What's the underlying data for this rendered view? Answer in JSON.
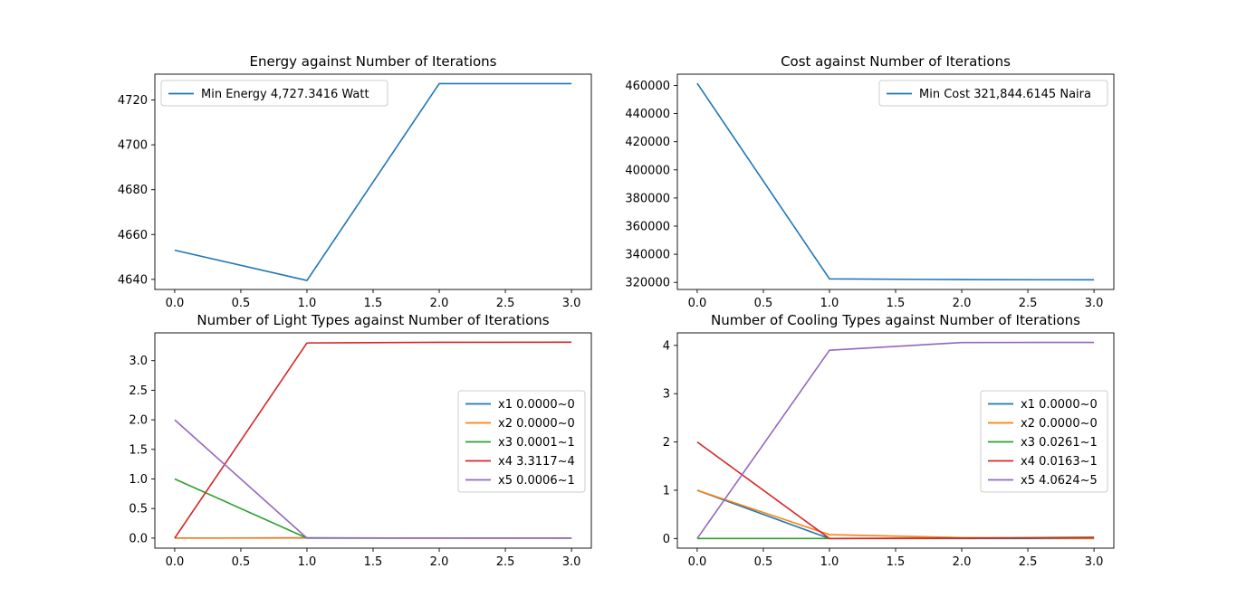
{
  "chart_data": [
    {
      "type": "line",
      "title": "Energy against Number of Iterations",
      "xlabel": "",
      "ylabel": "",
      "x": [
        0,
        1,
        2,
        3
      ],
      "xlim": [
        -0.15,
        3.15
      ],
      "ylim": [
        4635.5,
        4731.5
      ],
      "xticks": [
        0,
        0.5,
        1,
        1.5,
        2,
        2.5,
        3
      ],
      "xtick_labels": [
        "0.0",
        "0.5",
        "1.0",
        "1.5",
        "2.0",
        "2.5",
        "3.0"
      ],
      "yticks": [
        4640,
        4660,
        4680,
        4700,
        4720
      ],
      "ytick_labels": [
        "4640",
        "4660",
        "4680",
        "4700",
        "4720"
      ],
      "legend_position": "upper-left",
      "series": [
        {
          "name": "Min Energy 4,727.3416 Watt",
          "color": "#1f77b4",
          "values": [
            4653,
            4639.5,
            4727.3,
            4727.3
          ]
        }
      ]
    },
    {
      "type": "line",
      "title": "Cost against Number of Iterations",
      "xlabel": "",
      "ylabel": "",
      "x": [
        0,
        1,
        2,
        3
      ],
      "xlim": [
        -0.15,
        3.15
      ],
      "ylim": [
        315000,
        468000
      ],
      "xticks": [
        0,
        0.5,
        1,
        1.5,
        2,
        2.5,
        3
      ],
      "xtick_labels": [
        "0.0",
        "0.5",
        "1.0",
        "1.5",
        "2.0",
        "2.5",
        "3.0"
      ],
      "yticks": [
        320000,
        340000,
        360000,
        380000,
        400000,
        420000,
        440000,
        460000
      ],
      "ytick_labels": [
        "320000",
        "340000",
        "360000",
        "380000",
        "400000",
        "420000",
        "440000",
        "460000"
      ],
      "legend_position": "upper-right",
      "series": [
        {
          "name": "Min Cost 321,844.6145 Naira",
          "color": "#1f77b4",
          "values": [
            461500,
            322500,
            322000,
            321845
          ]
        }
      ]
    },
    {
      "type": "line",
      "title": "Number of Light Types against Number of Iterations",
      "xlabel": "",
      "ylabel": "",
      "x": [
        0,
        1,
        2,
        3
      ],
      "xlim": [
        -0.15,
        3.15
      ],
      "ylim": [
        -0.17,
        3.47
      ],
      "xticks": [
        0,
        0.5,
        1,
        1.5,
        2,
        2.5,
        3
      ],
      "xtick_labels": [
        "0.0",
        "0.5",
        "1.0",
        "1.5",
        "2.0",
        "2.5",
        "3.0"
      ],
      "yticks": [
        0,
        0.5,
        1,
        1.5,
        2,
        2.5,
        3
      ],
      "ytick_labels": [
        "0.0",
        "0.5",
        "1.0",
        "1.5",
        "2.0",
        "2.5",
        "3.0"
      ],
      "legend_position": "center-right",
      "series": [
        {
          "name": "x1 0.0000~0",
          "color": "#1f77b4",
          "values": [
            0,
            0.005,
            0,
            0
          ]
        },
        {
          "name": "x2 0.0000~0",
          "color": "#ff7f0e",
          "values": [
            0,
            0,
            0,
            0
          ]
        },
        {
          "name": "x3 0.0001~1",
          "color": "#2ca02c",
          "values": [
            1,
            0,
            0,
            0.0001
          ]
        },
        {
          "name": "x4 3.3117~4",
          "color": "#d62728",
          "values": [
            0,
            3.3,
            3.31,
            3.3117
          ]
        },
        {
          "name": "x5 0.0006~1",
          "color": "#9467bd",
          "values": [
            2,
            0,
            0,
            0.0006
          ]
        }
      ]
    },
    {
      "type": "line",
      "title": "Number of Cooling Types against Number of Iterations",
      "xlabel": "",
      "ylabel": "",
      "x": [
        0,
        1,
        2,
        3
      ],
      "xlim": [
        -0.15,
        3.15
      ],
      "ylim": [
        -0.2,
        4.26
      ],
      "xticks": [
        0,
        0.5,
        1,
        1.5,
        2,
        2.5,
        3
      ],
      "xtick_labels": [
        "0.0",
        "0.5",
        "1.0",
        "1.5",
        "2.0",
        "2.5",
        "3.0"
      ],
      "yticks": [
        0,
        1,
        2,
        3,
        4
      ],
      "ytick_labels": [
        "0",
        "1",
        "2",
        "3",
        "4"
      ],
      "legend_position": "center-right",
      "series": [
        {
          "name": "x1 0.0000~0",
          "color": "#1f77b4",
          "values": [
            1,
            0,
            0,
            0
          ]
        },
        {
          "name": "x2 0.0000~0",
          "color": "#ff7f0e",
          "values": [
            1,
            0.08,
            0.02,
            0
          ]
        },
        {
          "name": "x3 0.0261~1",
          "color": "#2ca02c",
          "values": [
            0,
            0,
            0.01,
            0.0261
          ]
        },
        {
          "name": "x4 0.0163~1",
          "color": "#d62728",
          "values": [
            2,
            0,
            0.005,
            0.0163
          ]
        },
        {
          "name": "x5 4.0624~5",
          "color": "#9467bd",
          "values": [
            0,
            3.9,
            4.06,
            4.0624
          ]
        }
      ]
    }
  ]
}
